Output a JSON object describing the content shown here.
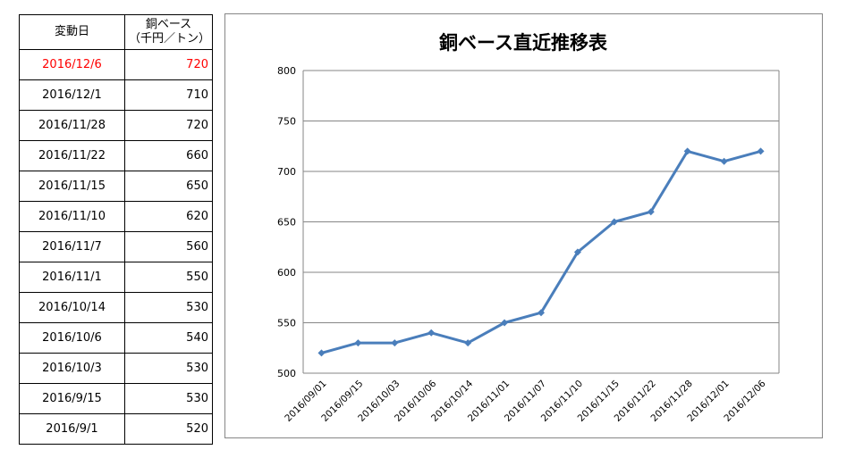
{
  "table": {
    "header": {
      "date": "変動日",
      "price_line1": "銅ベース",
      "price_line2": "（千円／トン）"
    },
    "highlight_color": "#ff0000",
    "rows": [
      {
        "date": "2016/12/6",
        "price": "720"
      },
      {
        "date": "2016/12/1",
        "price": "710"
      },
      {
        "date": "2016/11/28",
        "price": "720"
      },
      {
        "date": "2016/11/22",
        "price": "660"
      },
      {
        "date": "2016/11/15",
        "price": "650"
      },
      {
        "date": "2016/11/10",
        "price": "620"
      },
      {
        "date": "2016/11/7",
        "price": "560"
      },
      {
        "date": "2016/11/1",
        "price": "550"
      },
      {
        "date": "2016/10/14",
        "price": "530"
      },
      {
        "date": "2016/10/6",
        "price": "540"
      },
      {
        "date": "2016/10/3",
        "price": "530"
      },
      {
        "date": "2016/9/15",
        "price": "530"
      },
      {
        "date": "2016/9/1",
        "price": "520"
      }
    ]
  },
  "chart_data": {
    "type": "line",
    "title": "銅ベース直近推移表",
    "xlabel": "",
    "ylabel": "",
    "categories": [
      "2016/09/01",
      "2016/09/15",
      "2016/10/03",
      "2016/10/06",
      "2016/10/14",
      "2016/11/01",
      "2016/11/07",
      "2016/11/10",
      "2016/11/15",
      "2016/11/22",
      "2016/11/28",
      "2016/12/01",
      "2016/12/06"
    ],
    "series": [
      {
        "values": [
          520,
          530,
          530,
          540,
          530,
          550,
          560,
          620,
          650,
          660,
          720,
          710,
          720
        ],
        "color": "#4a7ebb",
        "marker": "diamond"
      }
    ],
    "ylim": [
      500,
      800
    ],
    "yticks": [
      500,
      550,
      600,
      650,
      700,
      750,
      800
    ],
    "grid": "horizontal",
    "legend": "none"
  }
}
